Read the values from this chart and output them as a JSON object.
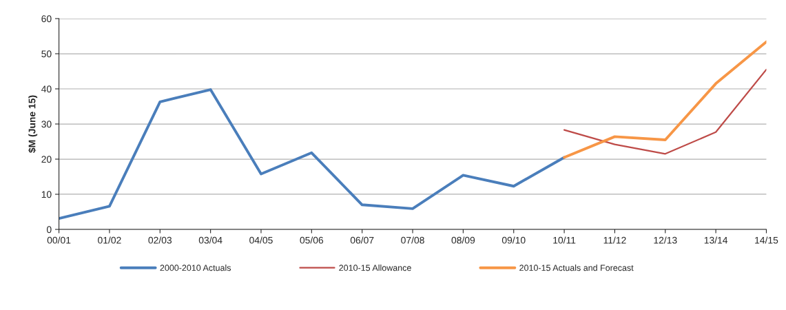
{
  "chart_data": {
    "type": "line",
    "ylabel": "$M (June 15)",
    "categories": [
      "00/01",
      "01/02",
      "02/03",
      "03/04",
      "04/05",
      "05/06",
      "06/07",
      "07/08",
      "08/09",
      "09/10",
      "10/11",
      "11/12",
      "12/13",
      "13/14",
      "14/15"
    ],
    "series": [
      {
        "name": "2000-2010 Actuals",
        "color": "#4a7ebb",
        "values": [
          3.1,
          6.6,
          36.3,
          39.8,
          15.8,
          21.8,
          7.0,
          5.9,
          15.4,
          12.3,
          20.5,
          null,
          null,
          null,
          null
        ]
      },
      {
        "name": "2010-15 Allowance",
        "color": "#be4b48",
        "values": [
          null,
          null,
          null,
          null,
          null,
          null,
          null,
          null,
          null,
          null,
          28.3,
          24.2,
          21.5,
          27.7,
          45.5
        ]
      },
      {
        "name": "2010-15 Actuals and Forecast",
        "color": "#f79646",
        "values": [
          null,
          null,
          null,
          null,
          null,
          null,
          null,
          null,
          null,
          null,
          20.5,
          26.4,
          25.5,
          41.5,
          53.4
        ]
      }
    ],
    "ylim": [
      0,
      60
    ],
    "yticks": [
      0,
      10,
      20,
      30,
      40,
      50,
      60
    ],
    "grid": "y",
    "legend": "bottom",
    "marker": "none",
    "line_style": "solid"
  }
}
